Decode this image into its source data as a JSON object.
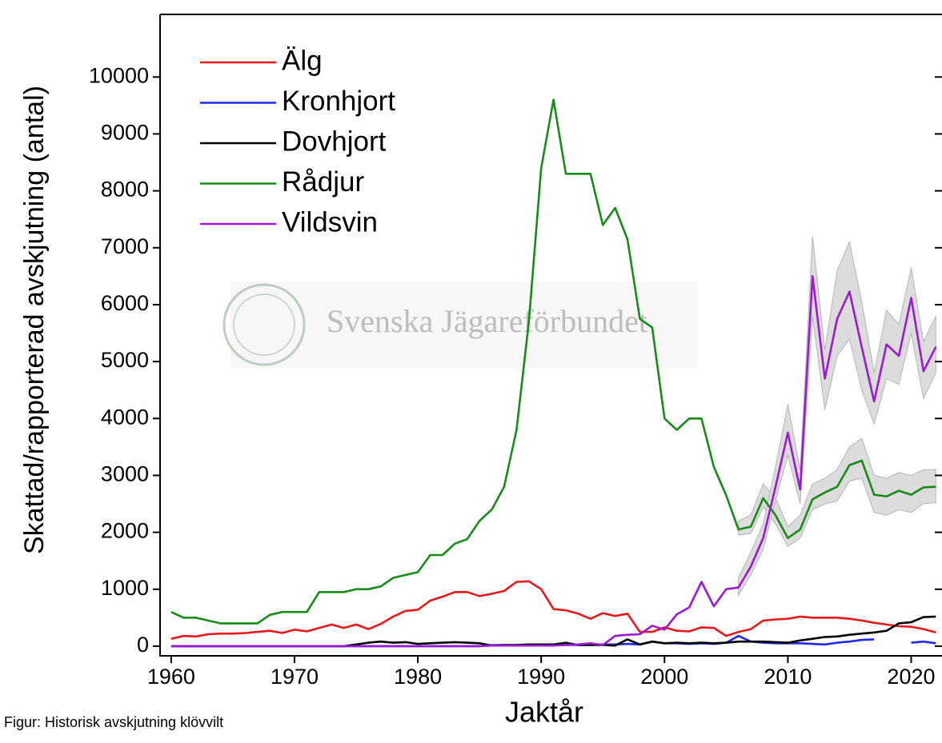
{
  "chart_data": {
    "type": "line",
    "ylabel": "Skattad/rapporterad avskjutning (antal)",
    "xlabel": "Jaktår",
    "caption": "Figur: Historisk avskjutning klövvilt",
    "watermark": "Svenska Jägareförbundet",
    "xlim": [
      1959.1,
      2022.5
    ],
    "ylim": [
      -170,
      11100
    ],
    "xticks": [
      1960,
      1970,
      1980,
      1990,
      2000,
      2010,
      2020
    ],
    "yticks": [
      0,
      1000,
      2000,
      3000,
      4000,
      5000,
      6000,
      7000,
      8000,
      9000,
      10000
    ],
    "band_color": "#dcdcdc",
    "x": [
      1960,
      1961,
      1962,
      1963,
      1964,
      1965,
      1966,
      1967,
      1968,
      1969,
      1970,
      1971,
      1972,
      1973,
      1974,
      1975,
      1976,
      1977,
      1978,
      1979,
      1980,
      1981,
      1982,
      1983,
      1984,
      1985,
      1986,
      1987,
      1988,
      1989,
      1990,
      1991,
      1992,
      1993,
      1994,
      1995,
      1996,
      1997,
      1998,
      1999,
      2000,
      2001,
      2002,
      2003,
      2004,
      2005,
      2006,
      2007,
      2008,
      2009,
      2010,
      2011,
      2012,
      2013,
      2014,
      2015,
      2016,
      2017,
      2018,
      2019,
      2020,
      2021,
      2022
    ],
    "series": [
      {
        "name": "Älg",
        "color": "#e8191c",
        "values": [
          130,
          180,
          170,
          210,
          220,
          220,
          230,
          250,
          270,
          230,
          290,
          260,
          320,
          380,
          320,
          380,
          300,
          390,
          520,
          620,
          640,
          800,
          870,
          950,
          950,
          880,
          920,
          970,
          1130,
          1140,
          1000,
          650,
          630,
          570,
          480,
          580,
          530,
          570,
          250,
          250,
          330,
          270,
          260,
          330,
          320,
          180,
          250,
          300,
          450,
          470,
          480,
          520,
          500,
          500,
          500,
          480,
          450,
          410,
          380,
          350,
          340,
          300,
          240
        ]
      },
      {
        "name": "Kronhjort",
        "color": "#1f2be6",
        "values": [
          0,
          0,
          0,
          0,
          0,
          0,
          0,
          0,
          0,
          0,
          0,
          0,
          0,
          0,
          0,
          0,
          0,
          0,
          0,
          0,
          0,
          0,
          0,
          0,
          0,
          0,
          20,
          20,
          20,
          30,
          30,
          30,
          20,
          20,
          20,
          30,
          30,
          40,
          30,
          80,
          50,
          50,
          40,
          50,
          40,
          60,
          180,
          80,
          60,
          50,
          50,
          50,
          40,
          30,
          60,
          80,
          110,
          120,
          null,
          null,
          60,
          80,
          50
        ]
      },
      {
        "name": "Dovhjort",
        "color": "#000000",
        "values": [
          0,
          0,
          0,
          0,
          0,
          0,
          0,
          0,
          0,
          0,
          0,
          0,
          0,
          0,
          0,
          30,
          60,
          80,
          60,
          70,
          40,
          50,
          60,
          70,
          60,
          50,
          10,
          20,
          20,
          30,
          30,
          30,
          60,
          20,
          20,
          20,
          10,
          120,
          30,
          80,
          50,
          60,
          50,
          60,
          50,
          60,
          80,
          80,
          80,
          70,
          60,
          100,
          130,
          160,
          170,
          200,
          220,
          240,
          270,
          400,
          420,
          510,
          520
        ]
      },
      {
        "name": "Rådjur",
        "color": "#1a8a1a",
        "values": [
          600,
          500,
          500,
          450,
          400,
          400,
          400,
          400,
          550,
          600,
          600,
          600,
          950,
          950,
          950,
          1000,
          1000,
          1050,
          1200,
          1250,
          1300,
          1600,
          1600,
          1800,
          1880,
          2200,
          2400,
          2800,
          3800,
          5700,
          8400,
          9600,
          8300,
          8300,
          8300,
          7400,
          7700,
          7150,
          5750,
          5600,
          4000,
          3800,
          4000,
          4000,
          3150,
          2650,
          2050,
          2100,
          2600,
          2300,
          1900,
          2050,
          2580,
          2700,
          2800,
          3180,
          3260,
          2660,
          2630,
          2730,
          2660,
          2790,
          2800
        ],
        "lower": [
          null,
          null,
          null,
          null,
          null,
          null,
          null,
          null,
          null,
          null,
          null,
          null,
          null,
          null,
          null,
          null,
          null,
          null,
          null,
          null,
          null,
          null,
          null,
          null,
          null,
          null,
          null,
          null,
          null,
          null,
          null,
          null,
          null,
          null,
          null,
          null,
          null,
          null,
          null,
          null,
          null,
          null,
          null,
          null,
          null,
          null,
          1950,
          1980,
          2450,
          2150,
          1750,
          1900,
          2400,
          2500,
          2550,
          2900,
          2950,
          2350,
          2300,
          2400,
          2350,
          2500,
          2520
        ],
        "upper": [
          null,
          null,
          null,
          null,
          null,
          null,
          null,
          null,
          null,
          null,
          null,
          null,
          null,
          null,
          null,
          null,
          null,
          null,
          null,
          null,
          null,
          null,
          null,
          null,
          null,
          null,
          null,
          null,
          null,
          null,
          null,
          null,
          null,
          null,
          null,
          null,
          null,
          null,
          null,
          null,
          null,
          null,
          null,
          null,
          null,
          null,
          2200,
          2300,
          2850,
          2600,
          2100,
          2300,
          2850,
          2950,
          3100,
          3500,
          3650,
          3000,
          2950,
          3050,
          3000,
          3100,
          3100
        ]
      },
      {
        "name": "Vildsvin",
        "color": "#9b1ad4",
        "values": [
          0,
          0,
          0,
          0,
          0,
          0,
          0,
          0,
          0,
          0,
          0,
          0,
          0,
          0,
          0,
          0,
          0,
          0,
          0,
          0,
          0,
          0,
          0,
          0,
          0,
          0,
          10,
          10,
          10,
          10,
          10,
          10,
          20,
          30,
          50,
          20,
          180,
          200,
          210,
          360,
          290,
          560,
          680,
          1130,
          700,
          1000,
          1030,
          1400,
          1900,
          2800,
          3750,
          2750,
          6500,
          4700,
          5750,
          6230,
          5250,
          4300,
          5300,
          5100,
          6120,
          4830,
          5260
        ],
        "lower": [
          null,
          null,
          null,
          null,
          null,
          null,
          null,
          null,
          null,
          null,
          null,
          null,
          null,
          null,
          null,
          null,
          null,
          null,
          null,
          null,
          null,
          null,
          null,
          null,
          null,
          null,
          null,
          null,
          null,
          null,
          null,
          null,
          null,
          null,
          null,
          null,
          null,
          null,
          null,
          null,
          null,
          null,
          null,
          null,
          null,
          null,
          900,
          1250,
          1700,
          2550,
          3350,
          2500,
          5800,
          4150,
          5100,
          5400,
          4500,
          3900,
          4700,
          4600,
          5500,
          4350,
          4800
        ],
        "upper": [
          null,
          null,
          null,
          null,
          null,
          null,
          null,
          null,
          null,
          null,
          null,
          null,
          null,
          null,
          null,
          null,
          null,
          null,
          null,
          null,
          null,
          null,
          null,
          null,
          null,
          null,
          null,
          null,
          null,
          null,
          null,
          null,
          null,
          null,
          null,
          null,
          null,
          null,
          null,
          null,
          null,
          null,
          null,
          null,
          null,
          null,
          1200,
          1650,
          2150,
          3150,
          4250,
          3100,
          7200,
          5200,
          6600,
          7100,
          6050,
          4800,
          5900,
          5650,
          6650,
          5350,
          5800
        ]
      }
    ]
  }
}
